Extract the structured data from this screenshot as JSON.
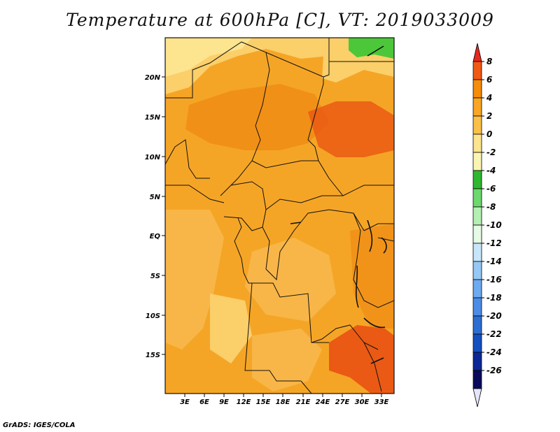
{
  "title": "Temperature at 600hPa [C], VT: 2019033009",
  "credit": "GrADS: IGES/COLA",
  "lat_labels": [
    "20N",
    "15N",
    "10N",
    "5N",
    "EQ",
    "5S",
    "10S",
    "15S"
  ],
  "lon_labels": [
    "3E",
    "6E",
    "9E",
    "12E",
    "15E",
    "18E",
    "21E",
    "24E",
    "27E",
    "30E",
    "33E"
  ],
  "colorbar": {
    "labels": [
      "8",
      "6",
      "4",
      "2",
      "0",
      "-2",
      "-4",
      "-6",
      "-8",
      "-10",
      "-12",
      "-14",
      "-16",
      "-18",
      "-20",
      "-22",
      "-24",
      "-26"
    ],
    "colors": [
      "#e6281e",
      "#f05a14",
      "#f58c0a",
      "#f8a623",
      "#fbc04a",
      "#fde48f",
      "#fbf5b4",
      "#2fb82f",
      "#6dd86d",
      "#b4f0b4",
      "#e6fae6",
      "#c8e6fa",
      "#96c8f5",
      "#6eaaf0",
      "#4b8ce6",
      "#2d6ed2",
      "#1450be",
      "#0a2896",
      "#0a0a5a",
      "#e6e6fa"
    ]
  },
  "map_colors": {
    "base": "#f5a526",
    "lighter": "#f8b648",
    "pale": "#fbcf6a",
    "yellow": "#fde48f",
    "warm": "#f08c14",
    "hot": "#ea5a14",
    "green": "#4cc73a"
  }
}
